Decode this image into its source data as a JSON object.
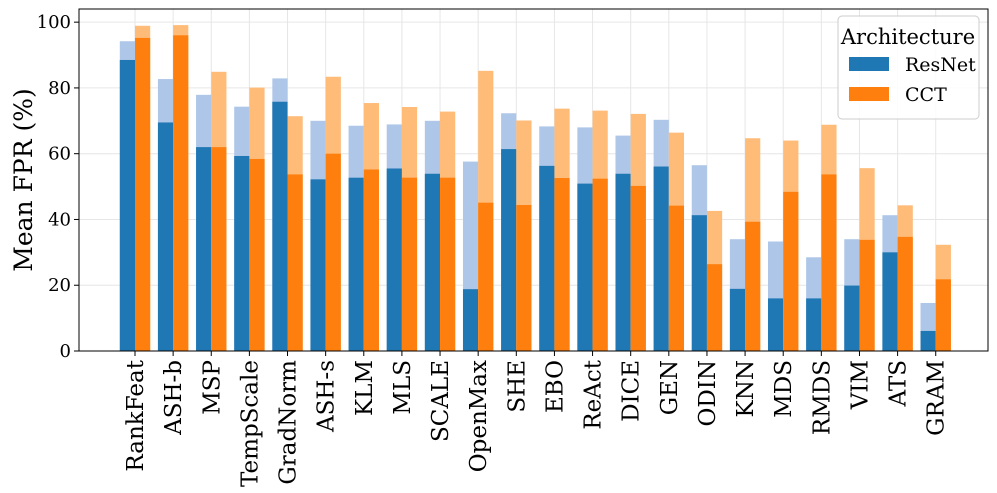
{
  "chart_data": {
    "type": "bar",
    "title": "",
    "xlabel": "",
    "ylabel": "Mean FPR (%)",
    "ylim": [
      0,
      104
    ],
    "yticks": [
      0,
      20,
      40,
      60,
      80,
      100
    ],
    "grid": true,
    "legend": {
      "title": "Architecture",
      "position": "top-right"
    },
    "categories": [
      "RankFeat",
      "ASH-b",
      "MSP",
      "TempScale",
      "GradNorm",
      "ASH-s",
      "KLM",
      "MLS",
      "SCALE",
      "OpenMax",
      "SHE",
      "EBO",
      "ReAct",
      "DICE",
      "GEN",
      "ODIN",
      "KNN",
      "MDS",
      "RMDS",
      "VIM",
      "ATS",
      "GRAM"
    ],
    "series": [
      {
        "name": "ResNet",
        "color": "#1f77b4",
        "light_color": "#aec7e8",
        "values": [
          88.5,
          69.5,
          62.0,
          59.3,
          75.8,
          52.2,
          52.7,
          55.5,
          53.9,
          18.8,
          61.4,
          56.3,
          50.9,
          53.9,
          56.1,
          41.3,
          18.9,
          16.0,
          16.0,
          19.9,
          30.0,
          6.1
        ],
        "upper_values": [
          94.2,
          82.7,
          77.9,
          74.3,
          82.9,
          70.0,
          68.5,
          68.9,
          70.0,
          57.6,
          72.3,
          68.3,
          68.0,
          65.5,
          70.3,
          56.5,
          34.0,
          33.3,
          28.5,
          34.0,
          41.3,
          14.6
        ]
      },
      {
        "name": "CCT",
        "color": "#ff7f0e",
        "light_color": "#ffbb78",
        "values": [
          95.2,
          96.0,
          62.0,
          58.4,
          53.7,
          60.0,
          55.2,
          52.7,
          52.7,
          45.1,
          44.4,
          52.6,
          52.4,
          50.2,
          44.2,
          26.4,
          39.3,
          48.4,
          53.7,
          33.8,
          34.7,
          21.8
        ],
        "upper_values": [
          98.9,
          99.1,
          84.9,
          80.1,
          71.4,
          83.4,
          75.4,
          74.2,
          72.8,
          85.2,
          70.1,
          73.7,
          73.1,
          72.1,
          66.4,
          42.6,
          64.7,
          64.0,
          68.8,
          55.6,
          44.3,
          32.3
        ]
      }
    ]
  }
}
